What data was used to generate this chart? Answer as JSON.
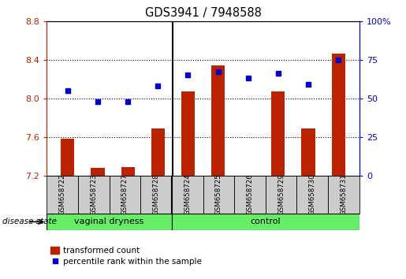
{
  "title": "GDS3941 / 7948588",
  "samples": [
    "GSM658722",
    "GSM658723",
    "GSM658727",
    "GSM658728",
    "GSM658724",
    "GSM658725",
    "GSM658726",
    "GSM658729",
    "GSM658730",
    "GSM658731"
  ],
  "red_values": [
    7.58,
    7.28,
    7.29,
    7.69,
    8.07,
    8.34,
    7.2,
    8.07,
    7.69,
    8.46
  ],
  "blue_values": [
    55,
    48,
    48,
    58,
    65,
    67,
    63,
    66,
    59,
    75
  ],
  "groups": [
    "vaginal dryness",
    "vaginal dryness",
    "vaginal dryness",
    "vaginal dryness",
    "control",
    "control",
    "control",
    "control",
    "control",
    "control"
  ],
  "ylim_left": [
    7.2,
    8.8
  ],
  "ylim_right": [
    0,
    100
  ],
  "yticks_left": [
    7.2,
    7.6,
    8.0,
    8.4,
    8.8
  ],
  "yticks_right": [
    0,
    25,
    50,
    75,
    100
  ],
  "bar_color": "#BB2200",
  "dot_color": "#0000CC",
  "label_red": "transformed count",
  "label_blue": "percentile rank within the sample",
  "disease_state_label": "disease state",
  "split_index": 4,
  "group_bg": "#66EE66",
  "cell_bg": "#CCCCCC",
  "dotted_lines": [
    7.6,
    8.0,
    8.4
  ]
}
